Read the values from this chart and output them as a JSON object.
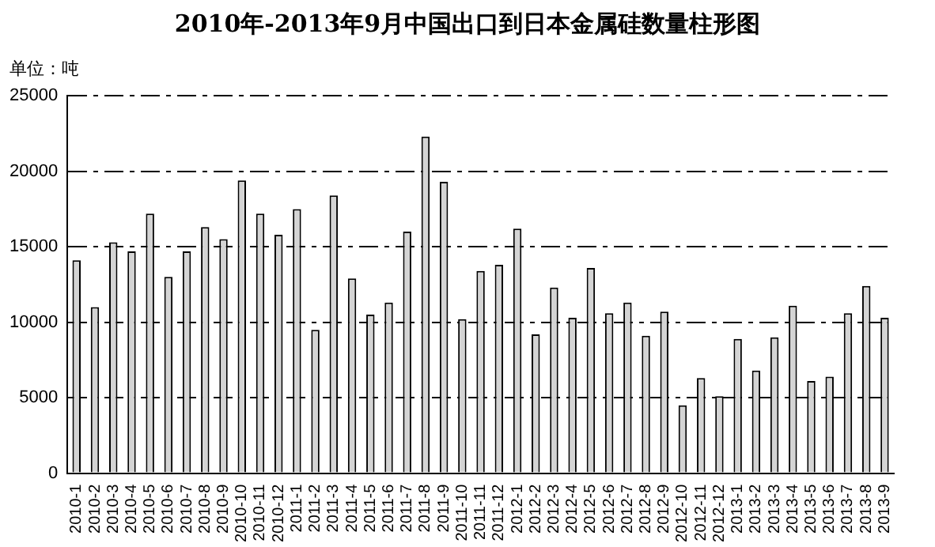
{
  "chart_data": {
    "type": "bar",
    "title": "2010年-2013年9月中国出口到日本金属硅数量柱形图",
    "annotations": [
      "单位：吨"
    ],
    "categories": [
      "2010-1",
      "2010-2",
      "2010-3",
      "2010-4",
      "2010-5",
      "2010-6",
      "2010-7",
      "2010-8",
      "2010-9",
      "2010-10",
      "2010-11",
      "2010-12",
      "2011-1",
      "2011-2",
      "2011-3",
      "2011-4",
      "2011-5",
      "2011-6",
      "2011-7",
      "2011-8",
      "2011-9",
      "2011-10",
      "2011-11",
      "2011-12",
      "2012-1",
      "2012-2",
      "2012-3",
      "2012-4",
      "2012-5",
      "2012-6",
      "2012-7",
      "2012-8",
      "2012-9",
      "2012-10",
      "2012-11",
      "2012-12",
      "2013-1",
      "2013-2",
      "2013-3",
      "2013-4",
      "2013-5",
      "2013-6",
      "2013-7",
      "2013-8",
      "2013-9"
    ],
    "values": [
      14100,
      11000,
      15300,
      14700,
      17200,
      13000,
      14700,
      16300,
      15500,
      19400,
      17200,
      15800,
      17500,
      9500,
      18400,
      12900,
      10500,
      11300,
      16000,
      22300,
      19300,
      10200,
      13400,
      13800,
      16200,
      9200,
      12300,
      10300,
      13600,
      10600,
      11300,
      9100,
      10700,
      4500,
      6300,
      5100,
      8900,
      6800,
      9000,
      11100,
      6100,
      6400,
      10600,
      12400,
      10300
    ],
    "color": "#d4d4d4",
    "ylim": [
      0,
      25000
    ],
    "yticks": [
      0,
      5000,
      10000,
      15000,
      20000,
      25000
    ],
    "grid": "y",
    "legend": false
  }
}
